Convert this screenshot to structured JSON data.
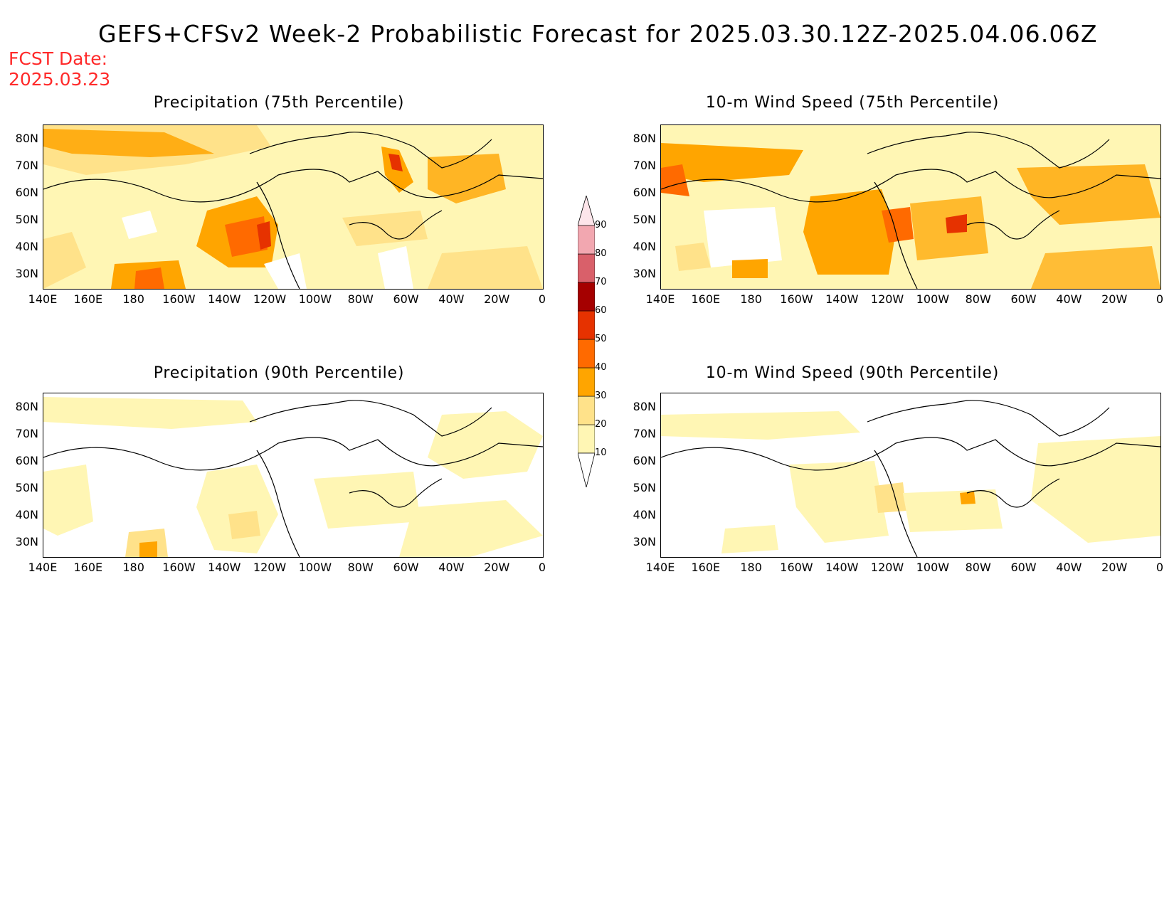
{
  "title": "GEFS+CFSv2 Week-2 Probabilistic Forecast for 2025.03.30.12Z-2025.04.06.06Z",
  "fcst_label": "FCST Date:",
  "fcst_date": "2025.03.23",
  "panels": [
    {
      "title": "Precipitation (75th Percentile)"
    },
    {
      "title": "10-m Wind Speed (75th Percentile)"
    },
    {
      "title": "Precipitation (90th Percentile)"
    },
    {
      "title": "10-m Wind Speed (90th Percentile)"
    }
  ],
  "lat_labels": [
    "80N",
    "70N",
    "60N",
    "50N",
    "40N",
    "30N"
  ],
  "lon_labels": [
    "140E",
    "160E",
    "180",
    "160W",
    "140W",
    "120W",
    "100W",
    "80W",
    "60W",
    "40W",
    "20W",
    "0"
  ],
  "colorbar": {
    "levels": [
      "10",
      "20",
      "30",
      "40",
      "50",
      "60",
      "70",
      "80",
      "90"
    ],
    "colors": [
      "#fff6b4",
      "#ffe28a",
      "#ffa500",
      "#ff6a00",
      "#e63200",
      "#a50000",
      "#d9606a",
      "#f2a7b0",
      "#fde5ea"
    ]
  }
}
